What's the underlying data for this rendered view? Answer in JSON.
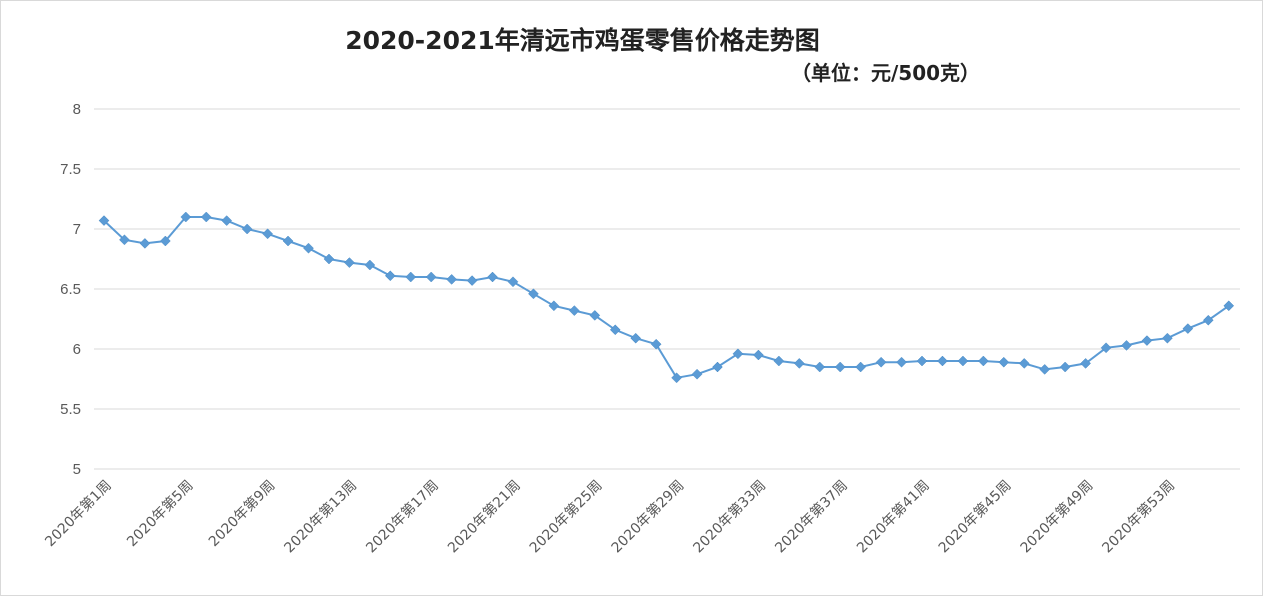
{
  "chart_data": {
    "type": "line",
    "title": "2020-2021年清远市鸡蛋零售价格走势图",
    "subtitle": "（单位：元/500克）",
    "xlabel": "",
    "ylabel": "",
    "ylim": [
      5,
      8
    ],
    "yticks": [
      "5",
      "5.5",
      "6",
      "6.5",
      "7",
      "7.5",
      "8"
    ],
    "grid": true,
    "legend": "none",
    "marker": "diamond",
    "color": "#5b9bd5",
    "xtick_labels": [
      "2020年第1周",
      "2020年第5周",
      "2020年第9周",
      "2020年第13周",
      "2020年第17周",
      "2020年第21周",
      "2020年第25周",
      "2020年第29周",
      "2020年第33周",
      "2020年第37周",
      "2020年第41周",
      "2020年第45周",
      "2020年第49周",
      "2020年第53周"
    ],
    "xtick_every": 4,
    "values": [
      7.07,
      6.91,
      6.88,
      6.9,
      7.1,
      7.1,
      7.07,
      7.0,
      6.96,
      6.9,
      6.84,
      6.75,
      6.72,
      6.7,
      6.61,
      6.6,
      6.6,
      6.58,
      6.57,
      6.6,
      6.56,
      6.46,
      6.36,
      6.32,
      6.28,
      6.16,
      6.09,
      6.04,
      5.76,
      5.79,
      5.85,
      5.96,
      5.95,
      5.9,
      5.88,
      5.85,
      5.85,
      5.85,
      5.89,
      5.89,
      5.9,
      5.9,
      5.9,
      5.9,
      5.89,
      5.88,
      5.83,
      5.85,
      5.88,
      6.01,
      6.03,
      6.07,
      6.09,
      6.17,
      6.24,
      6.36
    ]
  }
}
